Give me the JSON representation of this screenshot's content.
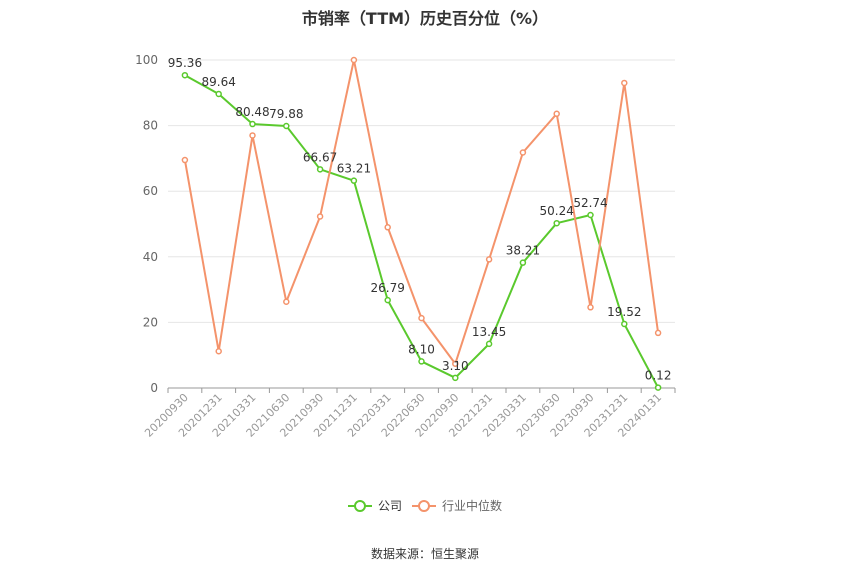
{
  "title": "市销率（TTM）历史百分位（%）",
  "source": "数据来源：恒生聚源",
  "colors": {
    "company": "#5ac92d",
    "industry": "#f4936b",
    "grid": "#e6e6e6",
    "axis": "#999999",
    "text": "#333333"
  },
  "chart_data": {
    "type": "line",
    "title": "市销率（TTM）历史百分位（%）",
    "xlabel": "",
    "ylabel": "",
    "ylim": [
      0,
      100
    ],
    "yticks": [
      0,
      20,
      40,
      60,
      80,
      100
    ],
    "grid": true,
    "legend_position": "bottom",
    "categories": [
      "20200930",
      "20201231",
      "20210331",
      "20210630",
      "20210930",
      "20211231",
      "20220331",
      "20220630",
      "20220930",
      "20221231",
      "20230331",
      "20230630",
      "20230930",
      "20231231",
      "20240131"
    ],
    "series": [
      {
        "name": "公司",
        "color": "#5ac92d",
        "show_labels": true,
        "values": [
          95.36,
          89.64,
          80.48,
          79.88,
          66.67,
          63.21,
          26.79,
          8.1,
          3.1,
          13.45,
          38.21,
          50.24,
          52.74,
          19.52,
          0.12
        ]
      },
      {
        "name": "行业中位数",
        "color": "#f4936b",
        "show_labels": false,
        "values": [
          69.5,
          11.2,
          77.0,
          26.3,
          52.3,
          100.0,
          49.0,
          21.3,
          7.4,
          39.2,
          71.8,
          83.6,
          24.6,
          93.0,
          16.8
        ]
      }
    ]
  }
}
